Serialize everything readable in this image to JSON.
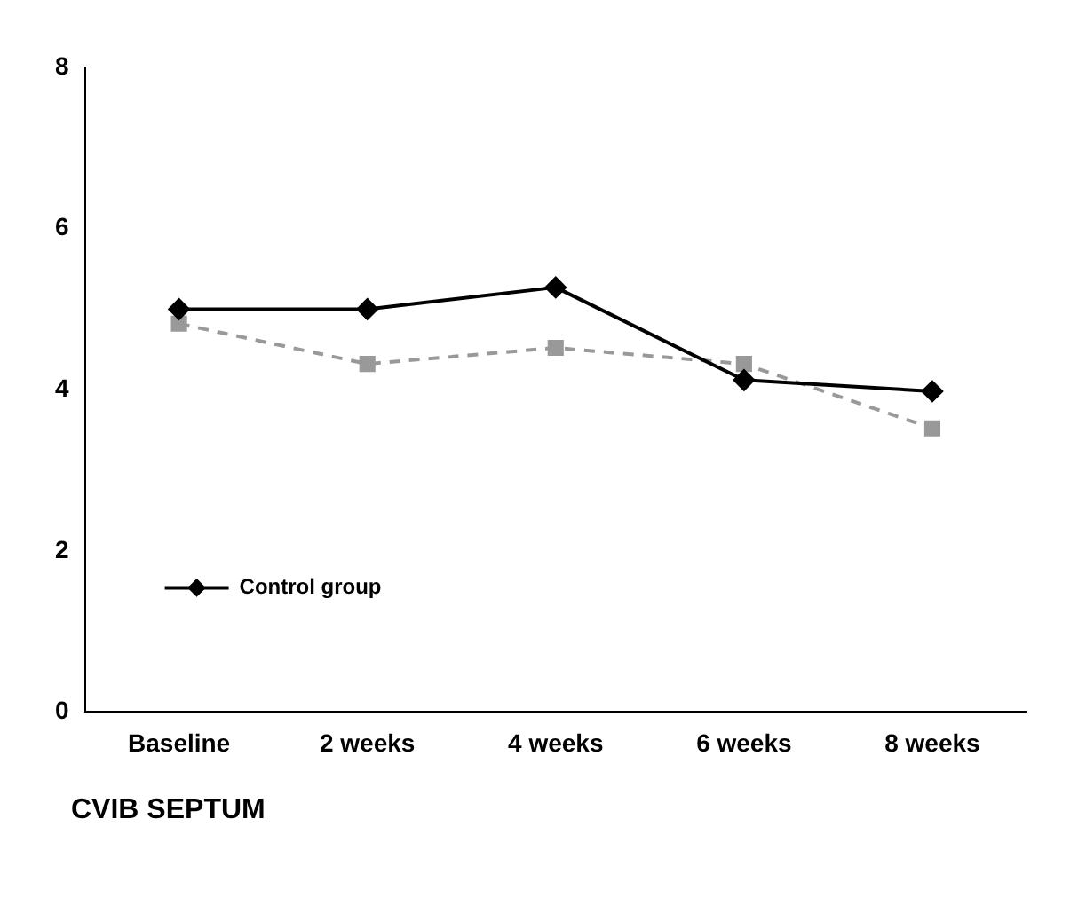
{
  "chart_data": {
    "type": "line",
    "annotations": [
      "CVIB SEPTUM"
    ],
    "categories": [
      "Baseline",
      "2 weeks",
      "4 weeks",
      "6 weeks",
      "8 weeks"
    ],
    "series": [
      {
        "name": "Control group",
        "color": "#000000",
        "marker": "diamond",
        "line_style": "solid",
        "values": [
          5.0,
          5.0,
          5.27,
          4.12,
          3.98
        ]
      },
      {
        "color": "#999999",
        "marker": "square",
        "line_style": "dashed",
        "values": [
          4.82,
          4.32,
          4.52,
          4.32,
          3.52
        ]
      }
    ],
    "ylim": [
      0,
      8
    ],
    "yticks": [
      0,
      2,
      4,
      6,
      8
    ],
    "grid": false,
    "legend": "bottom left"
  }
}
